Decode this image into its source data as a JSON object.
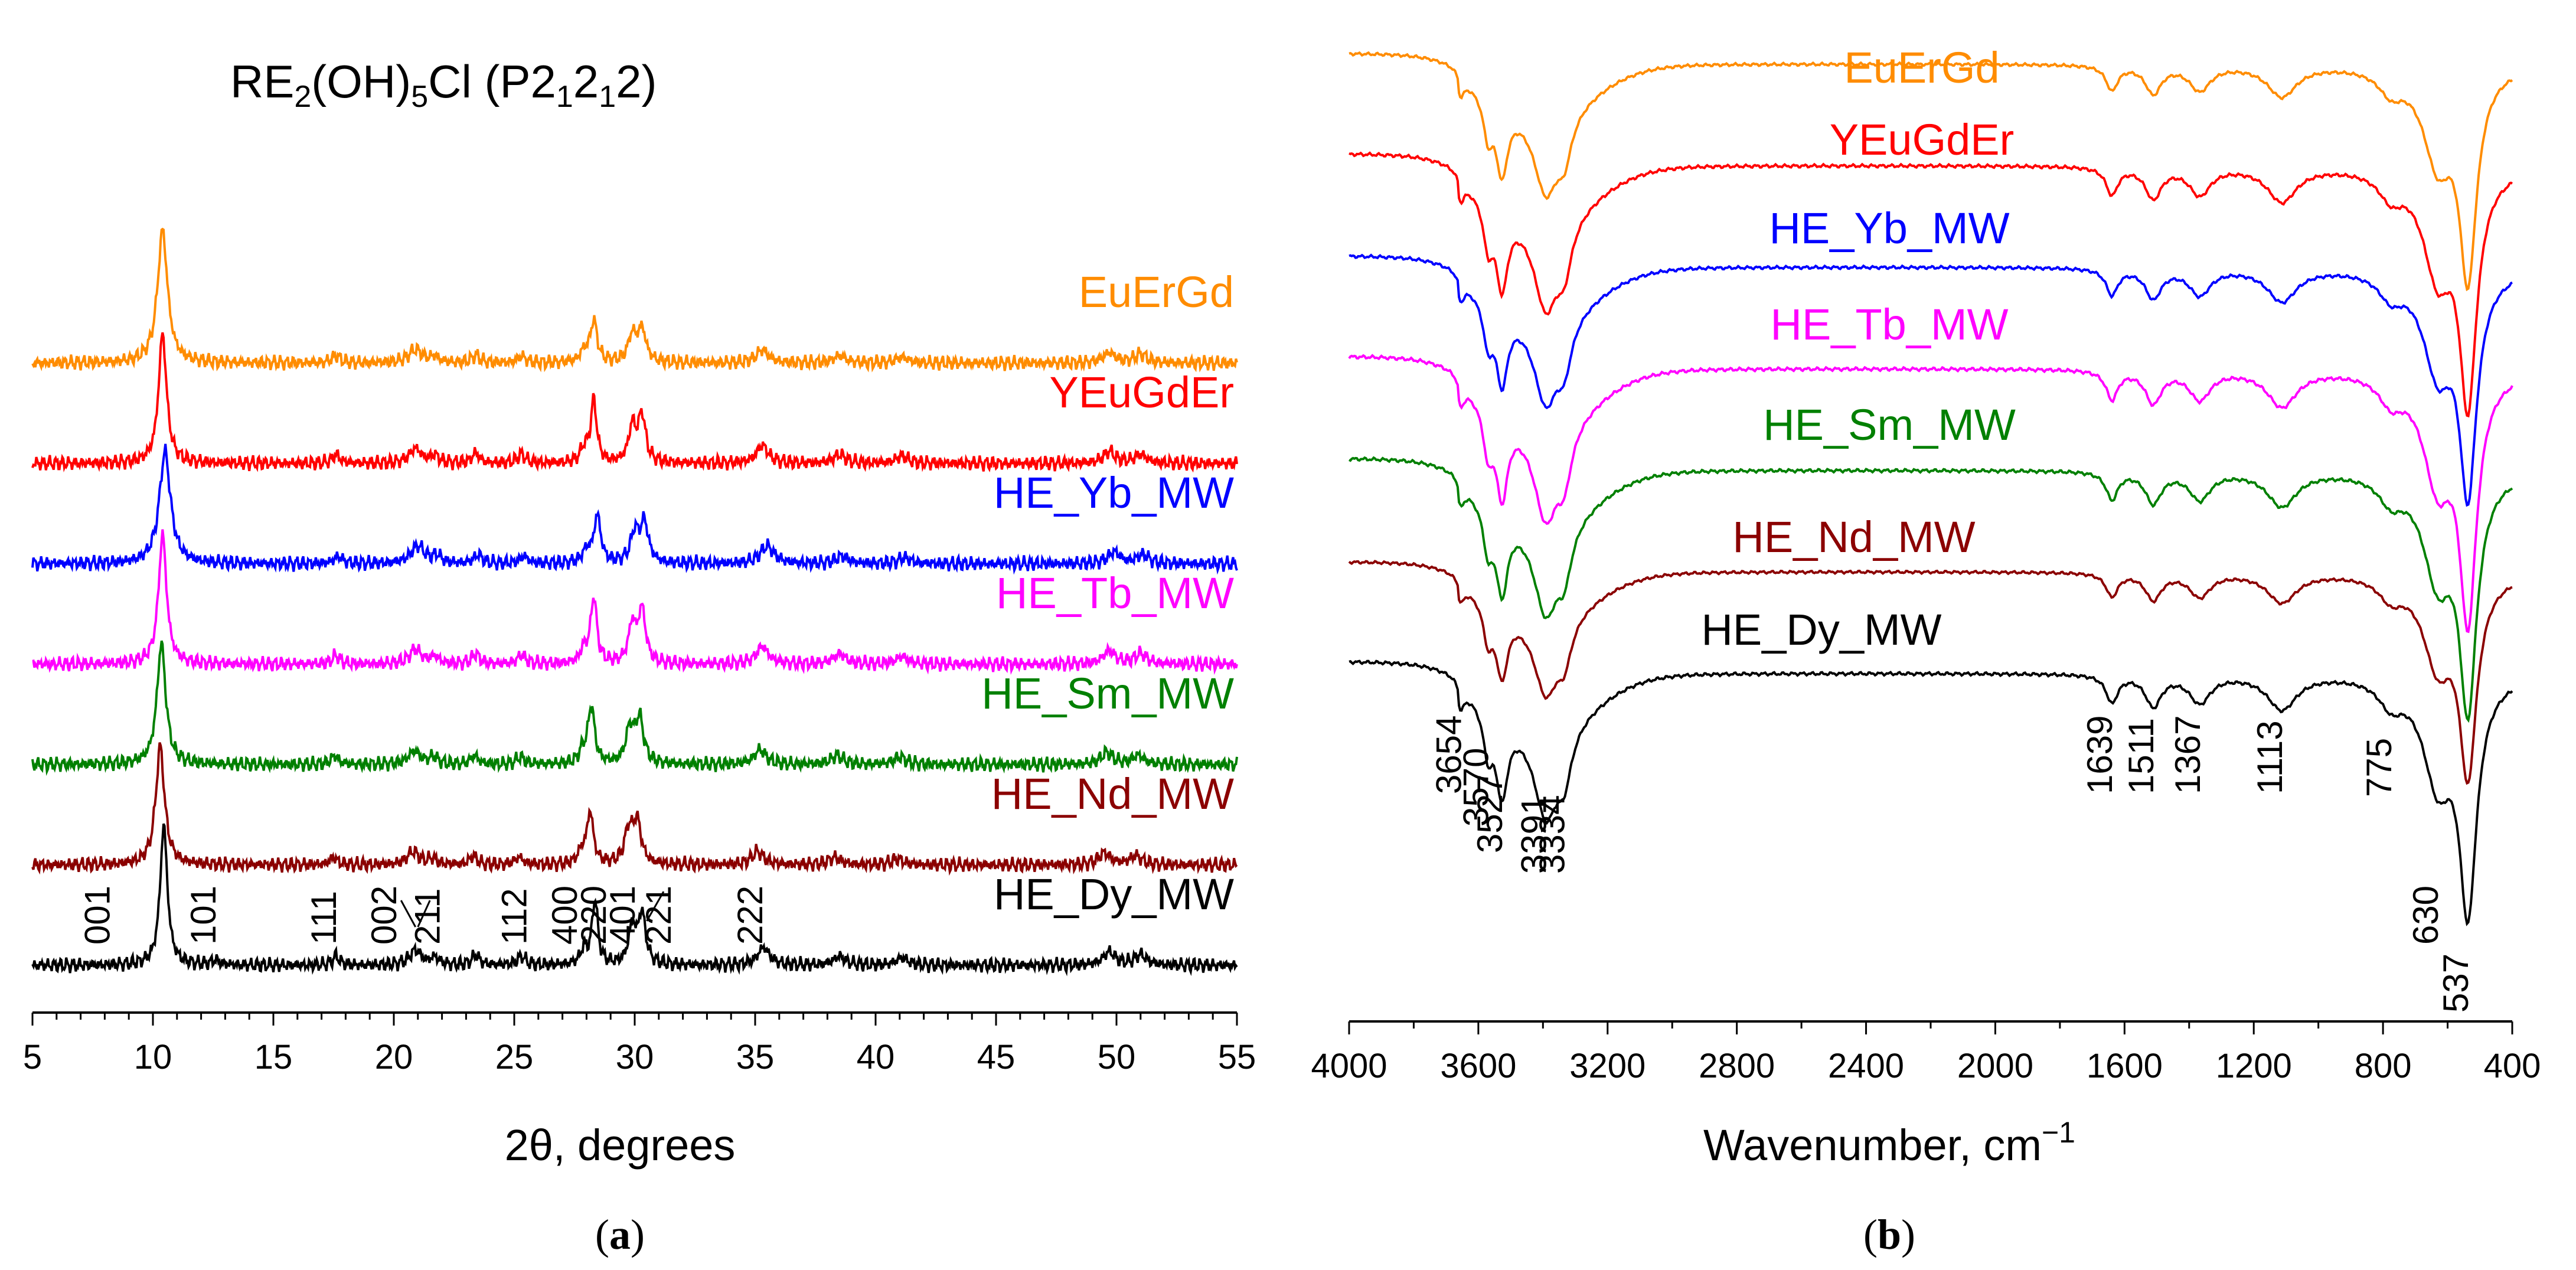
{
  "chart_data": [
    {
      "id": "a",
      "type": "line",
      "panel_label": "a",
      "title": "RE2(OH)5Cl (P21212)",
      "title_parts": {
        "re": "RE",
        "sub_re": "2",
        "oh": "(OH)",
        "sub_oh": "5",
        "rest": "Cl (P2",
        "sub1": "1",
        "mid": "2",
        "sub2": "1",
        "end": "2)"
      },
      "xlabel": "2θ, degrees",
      "ylabel": "",
      "xlim": [
        5,
        55
      ],
      "xticks": [
        5,
        10,
        15,
        20,
        25,
        30,
        35,
        40,
        45,
        50,
        55
      ],
      "xtick_labels": [
        "5",
        "10",
        "15",
        "20",
        "25",
        "30",
        "35",
        "40",
        "45",
        "50",
        "55"
      ],
      "series": [
        {
          "name": "EuErGd",
          "color": "#ff8c00",
          "offset": 6,
          "peaks": [
            [
              10.4,
              9.0,
              0.25
            ],
            [
              17.6,
              0.5,
              0.2
            ],
            [
              20.9,
              0.9,
              0.35
            ],
            [
              21.7,
              0.4,
              0.2
            ],
            [
              23.4,
              0.5,
              0.2
            ],
            [
              25.3,
              0.45,
              0.2
            ],
            [
              27.9,
              0.7,
              0.2
            ],
            [
              28.3,
              2.8,
              0.17
            ],
            [
              29.9,
              1.8,
              0.2
            ],
            [
              30.3,
              2.2,
              0.2
            ],
            [
              35.3,
              0.9,
              0.3
            ],
            [
              38.5,
              0.5,
              0.3
            ],
            [
              41.1,
              0.4,
              0.3
            ],
            [
              49.7,
              0.7,
              0.3
            ],
            [
              51.0,
              0.6,
              0.3
            ]
          ]
        },
        {
          "name": "YEuGdEr",
          "color": "#ff0000",
          "offset": 5,
          "peaks": [
            [
              10.4,
              8.8,
              0.2
            ],
            [
              17.6,
              0.6,
              0.18
            ],
            [
              20.9,
              1.0,
              0.3
            ],
            [
              21.7,
              0.5,
              0.2
            ],
            [
              23.4,
              0.7,
              0.18
            ],
            [
              25.3,
              0.6,
              0.2
            ],
            [
              27.9,
              0.9,
              0.18
            ],
            [
              28.3,
              4.2,
              0.15
            ],
            [
              29.9,
              2.4,
              0.18
            ],
            [
              30.3,
              3.2,
              0.18
            ],
            [
              35.3,
              1.2,
              0.3
            ],
            [
              38.5,
              0.6,
              0.3
            ],
            [
              41.1,
              0.5,
              0.3
            ],
            [
              49.7,
              0.8,
              0.3
            ],
            [
              51.0,
              0.6,
              0.3
            ]
          ]
        },
        {
          "name": "HE_Yb_MW",
          "color": "#0000ff",
          "offset": 4,
          "peaks": [
            [
              10.5,
              7.6,
              0.28
            ],
            [
              17.7,
              0.5,
              0.2
            ],
            [
              21.0,
              1.2,
              0.35
            ],
            [
              21.8,
              0.5,
              0.2
            ],
            [
              23.5,
              0.6,
              0.2
            ],
            [
              25.4,
              0.5,
              0.2
            ],
            [
              28.0,
              0.8,
              0.2
            ],
            [
              28.45,
              3.2,
              0.17
            ],
            [
              30.0,
              2.0,
              0.2
            ],
            [
              30.4,
              2.7,
              0.2
            ],
            [
              35.5,
              1.2,
              0.35
            ],
            [
              38.6,
              0.5,
              0.3
            ],
            [
              41.2,
              0.4,
              0.3
            ],
            [
              49.9,
              0.8,
              0.3
            ],
            [
              51.1,
              0.6,
              0.3
            ]
          ]
        },
        {
          "name": "HE_Tb_MW",
          "color": "#ff00ff",
          "offset": 3,
          "peaks": [
            [
              10.4,
              8.8,
              0.2
            ],
            [
              17.6,
              0.6,
              0.18
            ],
            [
              20.9,
              1.0,
              0.3
            ],
            [
              21.7,
              0.5,
              0.2
            ],
            [
              23.4,
              0.7,
              0.18
            ],
            [
              25.3,
              0.6,
              0.2
            ],
            [
              27.9,
              0.9,
              0.18
            ],
            [
              28.3,
              4.5,
              0.15
            ],
            [
              29.9,
              2.6,
              0.18
            ],
            [
              30.3,
              3.6,
              0.18
            ],
            [
              35.3,
              1.2,
              0.3
            ],
            [
              38.5,
              0.7,
              0.3
            ],
            [
              41.1,
              0.5,
              0.3
            ],
            [
              49.7,
              0.9,
              0.3
            ],
            [
              51.0,
              0.7,
              0.3
            ]
          ]
        },
        {
          "name": "HE_Sm_MW",
          "color": "#008000",
          "offset": 2,
          "peaks": [
            [
              10.35,
              8.2,
              0.22
            ],
            [
              17.55,
              0.6,
              0.18
            ],
            [
              20.85,
              0.9,
              0.3
            ],
            [
              21.65,
              0.5,
              0.2
            ],
            [
              23.35,
              0.6,
              0.18
            ],
            [
              25.25,
              0.5,
              0.2
            ],
            [
              27.85,
              0.8,
              0.18
            ],
            [
              28.2,
              3.9,
              0.16
            ],
            [
              29.8,
              2.3,
              0.2
            ],
            [
              30.2,
              3.0,
              0.2
            ],
            [
              35.2,
              1.0,
              0.3
            ],
            [
              38.4,
              0.6,
              0.3
            ],
            [
              41.0,
              0.5,
              0.3
            ],
            [
              49.6,
              0.8,
              0.3
            ],
            [
              50.9,
              0.6,
              0.3
            ]
          ]
        },
        {
          "name": "HE_Nd_MW",
          "color": "#8b0000",
          "offset": 1,
          "peaks": [
            [
              10.3,
              8.0,
              0.22
            ],
            [
              17.5,
              0.5,
              0.18
            ],
            [
              20.8,
              0.9,
              0.3
            ],
            [
              21.6,
              0.4,
              0.2
            ],
            [
              23.3,
              0.6,
              0.18
            ],
            [
              25.2,
              0.5,
              0.2
            ],
            [
              27.8,
              0.8,
              0.18
            ],
            [
              28.15,
              3.5,
              0.16
            ],
            [
              29.75,
              2.2,
              0.2
            ],
            [
              30.1,
              2.8,
              0.2
            ],
            [
              35.1,
              0.9,
              0.3
            ],
            [
              38.3,
              0.5,
              0.3
            ],
            [
              40.9,
              0.4,
              0.3
            ],
            [
              49.5,
              0.8,
              0.3
            ],
            [
              50.8,
              0.6,
              0.3
            ]
          ]
        },
        {
          "name": "HE_Dy_MW",
          "color": "#000000",
          "offset": 0,
          "peaks": [
            [
              10.45,
              9.5,
              0.18
            ],
            [
              12.6,
              0.3,
              0.2
            ],
            [
              17.6,
              0.6,
              0.18
            ],
            [
              20.9,
              1.0,
              0.3
            ],
            [
              21.7,
              0.5,
              0.2
            ],
            [
              23.4,
              0.7,
              0.18
            ],
            [
              25.3,
              0.6,
              0.2
            ],
            [
              27.9,
              1.0,
              0.18
            ],
            [
              28.35,
              4.4,
              0.14
            ],
            [
              29.9,
              2.5,
              0.18
            ],
            [
              30.3,
              3.4,
              0.18
            ],
            [
              35.35,
              1.2,
              0.3
            ],
            [
              38.5,
              0.6,
              0.3
            ],
            [
              41.1,
              0.5,
              0.3
            ],
            [
              49.7,
              0.9,
              0.3
            ],
            [
              51.0,
              0.7,
              0.3
            ]
          ]
        }
      ],
      "annotations": [
        {
          "label": "001",
          "x": 8.2
        },
        {
          "label": "101",
          "x": 12.6
        },
        {
          "label": "111",
          "x": 17.6
        },
        {
          "label": "002",
          "x": 20.1
        },
        {
          "label": "211",
          "x": 21.9
        },
        {
          "label": "112",
          "x": 25.5
        },
        {
          "label": "400",
          "x": 27.6
        },
        {
          "label": "220",
          "x": 28.8
        },
        {
          "label": "401",
          "x": 30.0
        },
        {
          "label": "221",
          "x": 31.5
        },
        {
          "label": "222",
          "x": 35.3
        }
      ]
    },
    {
      "id": "b",
      "type": "line",
      "panel_label": "b",
      "xlabel": "Wavenumber, cm",
      "xlabel_sup": "−1",
      "ylabel": "",
      "xlim": [
        4000,
        400
      ],
      "xticks": [
        4000,
        3600,
        3200,
        2800,
        2400,
        2000,
        1600,
        1200,
        800,
        400
      ],
      "xtick_labels": [
        "4000",
        "3600",
        "3200",
        "2800",
        "2400",
        "2000",
        "1600",
        "1200",
        "800",
        "400"
      ],
      "series": [
        {
          "name": "EuErGd",
          "color": "#ff8c00",
          "offset": 6,
          "scale": 0.9
        },
        {
          "name": "YEuGdEr",
          "color": "#ff0000",
          "offset": 5,
          "scale": 1.0
        },
        {
          "name": "HE_Yb_MW",
          "color": "#0000ff",
          "offset": 4,
          "scale": 0.95
        },
        {
          "name": "HE_Tb_MW",
          "color": "#ff00ff",
          "offset": 3,
          "scale": 1.05
        },
        {
          "name": "HE_Sm_MW",
          "color": "#008000",
          "offset": 2,
          "scale": 1.0
        },
        {
          "name": "HE_Nd_MW",
          "color": "#8b0000",
          "offset": 1,
          "scale": 0.85
        },
        {
          "name": "HE_Dy_MW",
          "color": "#000000",
          "offset": 0,
          "scale": 1.0
        }
      ],
      "bands": [
        [
          3654,
          0.5,
          12
        ],
        [
          3570,
          1.3,
          18
        ],
        [
          3527,
          2.3,
          22
        ],
        [
          3391,
          2.6,
          45
        ],
        [
          3334,
          1.3,
          28
        ],
        [
          1639,
          0.8,
          22
        ],
        [
          1511,
          0.9,
          30
        ],
        [
          1367,
          0.8,
          40
        ],
        [
          1113,
          1.0,
          55
        ],
        [
          775,
          0.7,
          45
        ],
        [
          630,
          3.0,
          55
        ],
        [
          537,
          6.5,
          32
        ]
      ],
      "annotations": [
        {
          "label": "3654",
          "x": 3654
        },
        {
          "label": "3570",
          "x": 3570
        },
        {
          "label": "3527",
          "x": 3527
        },
        {
          "label": "3391",
          "x": 3391
        },
        {
          "label": "3334",
          "x": 3334
        },
        {
          "label": "1639",
          "x": 1639
        },
        {
          "label": "1511",
          "x": 1511
        },
        {
          "label": "1367",
          "x": 1367
        },
        {
          "label": "1113",
          "x": 1113
        },
        {
          "label": "775",
          "x": 775
        },
        {
          "label": "630",
          "x": 630
        },
        {
          "label": "537",
          "x": 537
        }
      ]
    }
  ]
}
